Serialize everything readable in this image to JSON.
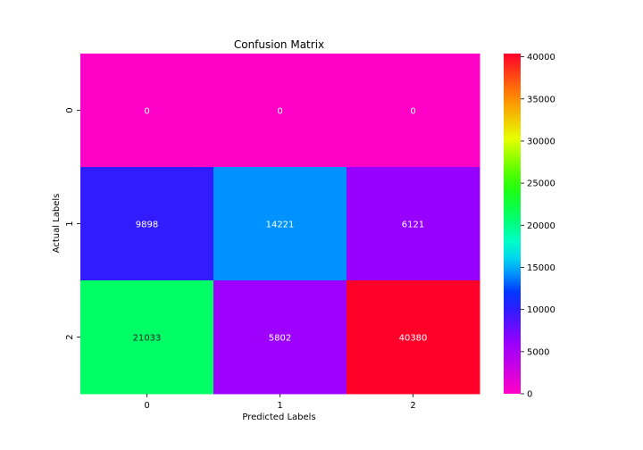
{
  "chart_data": {
    "type": "heatmap",
    "title": "Confusion Matrix",
    "xlabel": "Predicted Labels",
    "ylabel": "Actual Labels",
    "x_categories": [
      "0",
      "1",
      "2"
    ],
    "y_categories": [
      "0",
      "1",
      "2"
    ],
    "values": [
      [
        0,
        0,
        0
      ],
      [
        9898,
        14221,
        6121
      ],
      [
        21033,
        5802,
        40380
      ]
    ],
    "colormap": "gist_rainbow_r",
    "colorbar": {
      "vmin": 0,
      "vmax": 40380,
      "ticks": [
        0,
        5000,
        10000,
        15000,
        20000,
        25000,
        30000,
        35000,
        40000
      ],
      "tick_labels": [
        "0",
        "5000",
        "10000",
        "15000",
        "20000",
        "25000",
        "30000",
        "35000",
        "40000"
      ]
    }
  }
}
